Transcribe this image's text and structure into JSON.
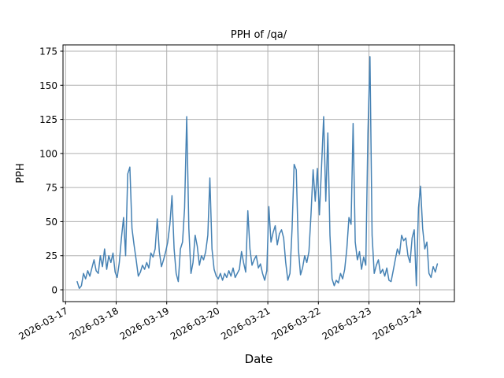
{
  "figure": {
    "background": "#ffffff"
  },
  "chart_data": {
    "type": "line",
    "title": "PPH of /qa/",
    "xlabel": "Date",
    "ylabel": "PPH",
    "line_color": "#4682b4",
    "grid": true,
    "grid_color": "#b0b0b0",
    "spine_color": "#000000",
    "legend_position": "none",
    "x_tick_labels": [
      "2026-03-17",
      "2026-03-18",
      "2026-03-19",
      "2026-03-20",
      "2026-03-21",
      "2026-03-22",
      "2026-03-23",
      "2026-03-24"
    ],
    "y_ticks": [
      0,
      25,
      50,
      75,
      100,
      125,
      150,
      175
    ],
    "ylim": [
      -9,
      180
    ],
    "x_start": "2026-03-17 05:30",
    "x_start_hour_of_day": 5.5,
    "x_step_hours": 1,
    "series": [
      {
        "name": "PPH",
        "values": [
          6,
          1,
          3,
          12,
          8,
          14,
          10,
          16,
          22,
          14,
          12,
          25,
          17,
          30,
          15,
          25,
          20,
          27,
          13,
          9,
          20,
          38,
          53,
          25,
          85,
          90,
          45,
          33,
          22,
          10,
          13,
          18,
          15,
          20,
          16,
          27,
          24,
          30,
          52,
          28,
          17,
          22,
          28,
          35,
          48,
          69,
          30,
          12,
          6,
          30,
          35,
          60,
          127,
          45,
          12,
          20,
          40,
          32,
          18,
          25,
          22,
          28,
          40,
          82,
          30,
          15,
          10,
          8,
          12,
          7,
          12,
          9,
          14,
          10,
          16,
          9,
          12,
          15,
          28,
          20,
          13,
          58,
          30,
          18,
          22,
          25,
          16,
          19,
          12,
          7,
          14,
          61,
          35,
          42,
          47,
          33,
          41,
          44,
          38,
          20,
          7,
          12,
          45,
          92,
          88,
          30,
          11,
          16,
          25,
          20,
          28,
          55,
          88,
          65,
          89,
          55,
          90,
          127,
          65,
          115,
          40,
          8,
          3,
          7,
          5,
          12,
          8,
          15,
          30,
          53,
          48,
          122,
          35,
          22,
          28,
          15,
          24,
          18,
          115,
          171,
          40,
          12,
          18,
          22,
          12,
          15,
          10,
          16,
          7,
          6,
          14,
          22,
          30,
          26,
          40,
          36,
          38,
          25,
          20,
          38,
          44,
          3,
          60,
          76,
          45,
          30,
          35,
          12,
          9,
          17,
          13,
          19
        ]
      }
    ]
  }
}
